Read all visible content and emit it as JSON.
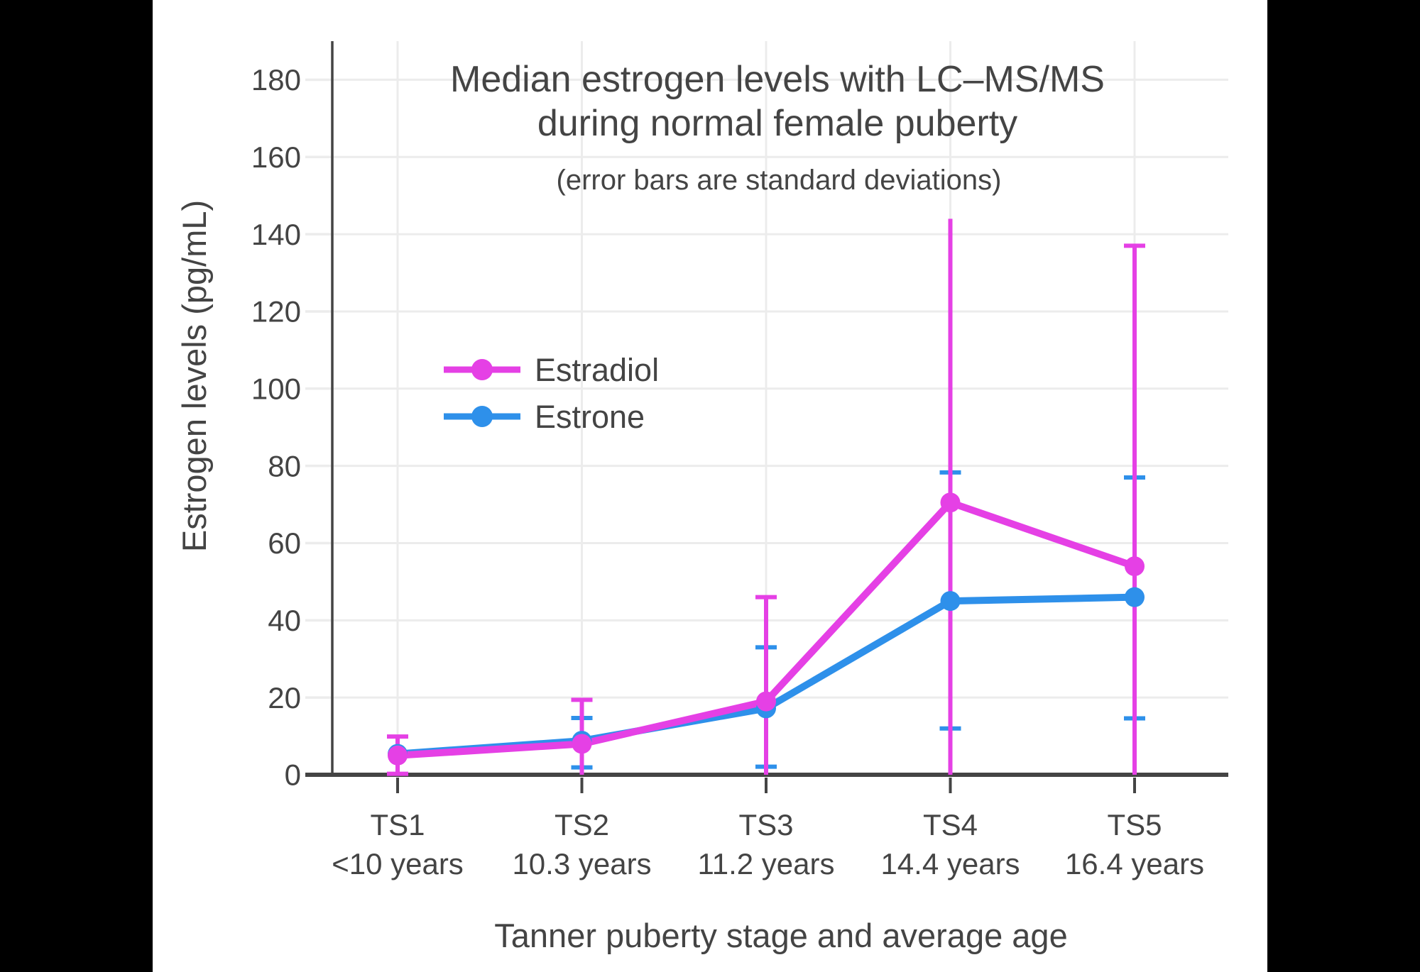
{
  "chart_data": {
    "type": "line",
    "title": "Median estrogen levels with LC–MS/MS",
    "title_line2": "during normal female puberty",
    "subtitle": "(error bars are standard deviations)",
    "xlabel": "Tanner puberty stage and average age",
    "ylabel": "Estrogen levels (pg/mL)",
    "categories": [
      "TS1",
      "TS2",
      "TS3",
      "TS4",
      "TS5"
    ],
    "categories_sub": [
      "<10 years",
      "10.3 years",
      "11.2 years",
      "14.4 years",
      "16.4 years"
    ],
    "y_ticks": [
      0,
      20,
      40,
      60,
      80,
      100,
      120,
      140,
      160,
      180
    ],
    "ylim": [
      0,
      190
    ],
    "grid": true,
    "legend_position": "inside-left-middle",
    "colors": {
      "background": "#000000",
      "canvas": "#ffffff",
      "grid": "#ececec",
      "axis": "#444444",
      "text": "#444444"
    },
    "series": [
      {
        "name": "Estradiol",
        "color": "#e540e5",
        "values": [
          5,
          8,
          19,
          70.5,
          54
        ],
        "errors": [
          {
            "lo": 0.25,
            "hi": 9.9,
            "cap_top": true,
            "cap_bottom": true
          },
          {
            "lo": 0,
            "hi": 19.4,
            "cap_top": true,
            "cap_bottom": false
          },
          {
            "lo": 0,
            "hi": 46,
            "cap_top": true,
            "cap_bottom": false
          },
          {
            "lo": 0,
            "hi": 144,
            "cap_top": false,
            "cap_bottom": false
          },
          {
            "lo": 0,
            "hi": 137,
            "cap_top": true,
            "cap_bottom": false
          }
        ]
      },
      {
        "name": "Estrone",
        "color": "#2e90ea",
        "values": [
          5.4,
          8.8,
          17.2,
          45,
          46
        ],
        "errors": [
          null,
          {
            "lo": 1.9,
            "hi": 14.7,
            "cap_top": true,
            "cap_bottom": true
          },
          {
            "lo": 2.1,
            "hi": 33,
            "cap_top": true,
            "cap_bottom": true
          },
          {
            "lo": 12,
            "hi": 78.3,
            "cap_top": true,
            "cap_bottom": true
          },
          {
            "lo": 14.6,
            "hi": 77,
            "cap_top": true,
            "cap_bottom": true
          }
        ]
      }
    ]
  }
}
